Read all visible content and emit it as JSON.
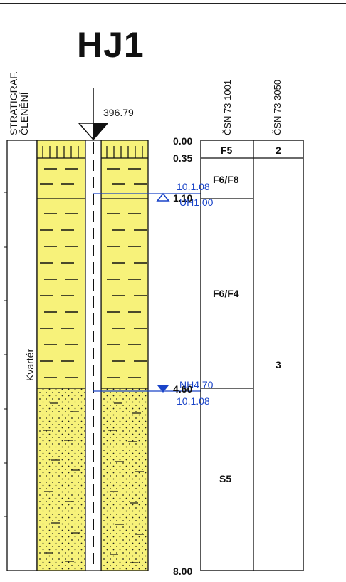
{
  "title": "HJ1",
  "elevation": "396.79",
  "strat_header": [
    "STRATIGRAF.",
    "ČLENĚNÍ"
  ],
  "col_headers": [
    "ČSN 73 1001",
    "ČSN 73 3050"
  ],
  "strat_unit": "Kvartér",
  "depths": [
    "0.00",
    "0.35",
    "1.10",
    "4.60",
    "8.00"
  ],
  "csn_1001": [
    "F5",
    "F6/F8",
    "F6/F4",
    "S5"
  ],
  "csn_3050": [
    "2",
    "3"
  ],
  "water": {
    "upper": {
      "date": "10.1.08",
      "label": "UH1.00"
    },
    "lower": {
      "label": "NH4.70",
      "date": "10.1.08"
    }
  },
  "colors": {
    "soil": "#f7f27a",
    "water": "#1a44c8",
    "line": "#111111"
  }
}
